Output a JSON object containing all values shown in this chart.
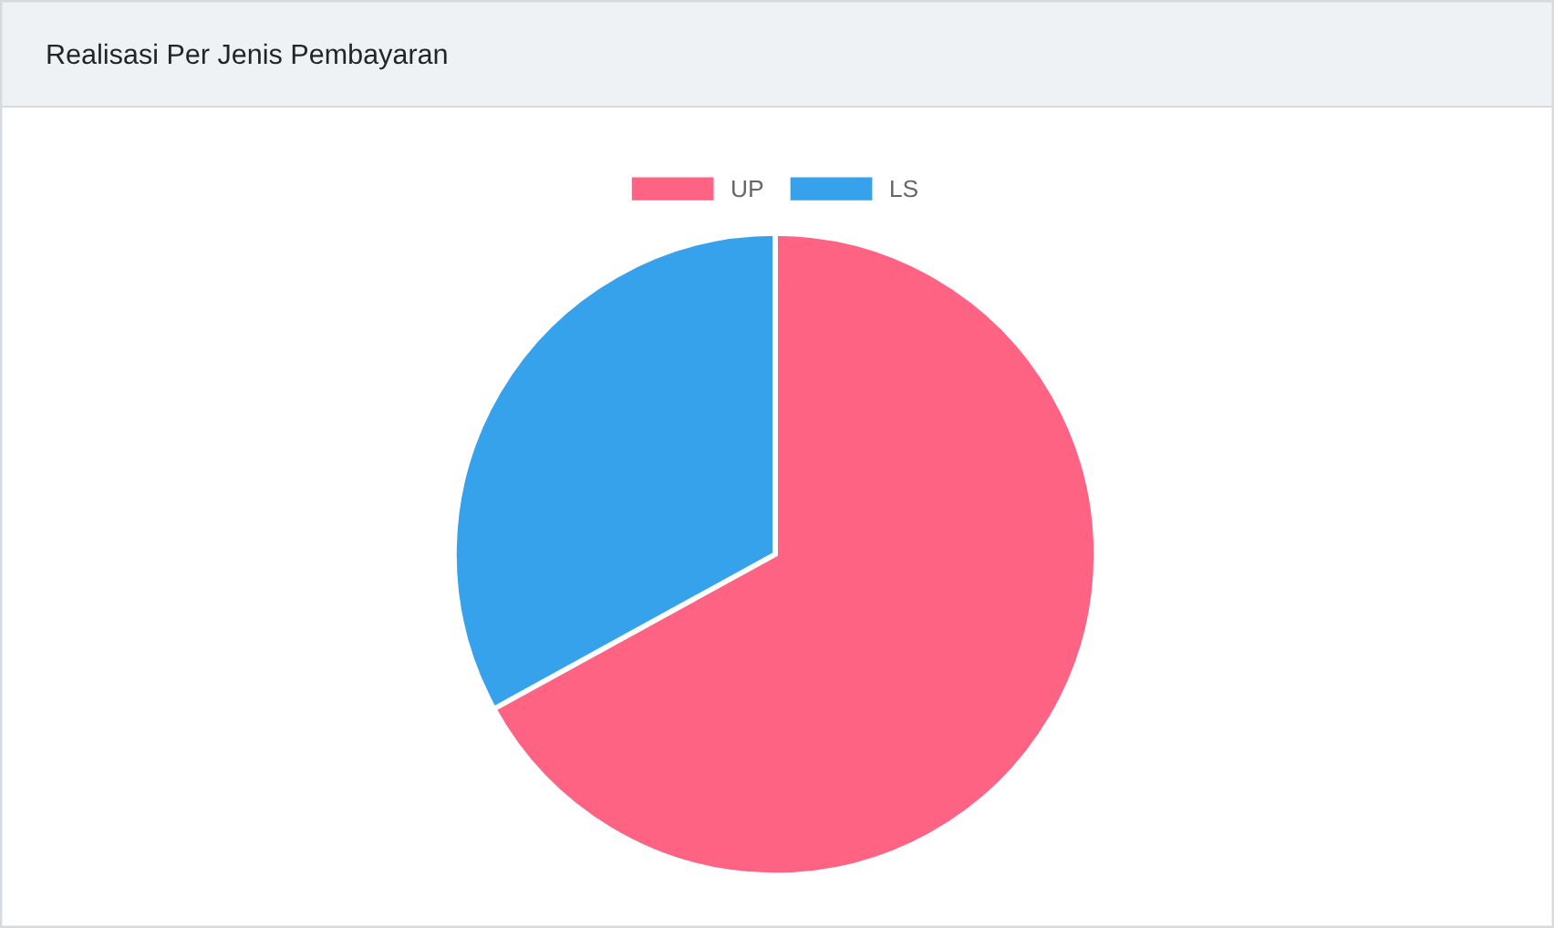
{
  "chart_data": {
    "type": "pie",
    "title": "Realisasi Per Jenis Pembayaran",
    "categories": [
      "UP",
      "LS"
    ],
    "values": [
      67,
      33
    ],
    "colors": [
      "#ff6384",
      "#36a2eb"
    ],
    "legend": "top"
  }
}
